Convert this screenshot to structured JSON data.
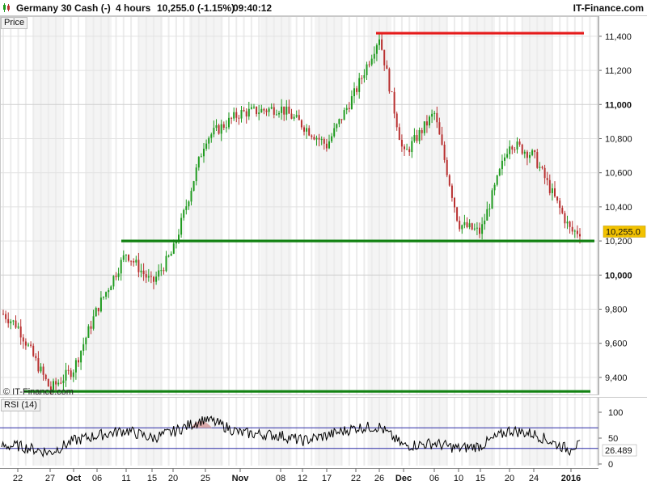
{
  "header": {
    "instrument": "Germany 30 Cash (-)",
    "timeframe": "4 hours",
    "quote": "10,255.0 (-1.15%)",
    "time": "09:40:12",
    "source": "IT-Finance.com"
  },
  "price_panel": {
    "label": "Price",
    "watermark": "© IT-Finance.com"
  },
  "rsi_panel": {
    "label": "RSI (14)"
  },
  "colors": {
    "bull": "#1f9a1f",
    "bear": "#b83030",
    "resistance": "#e51b1b",
    "support": "#128212",
    "rsi_line": "#000000",
    "rsi_band": "#2b2ba6",
    "last_price_bg": "#f2c200"
  },
  "chart_data": [
    {
      "type": "candlestick",
      "title": "Germany 30 Cash (-) 4 hours",
      "ylim": [
        9300,
        11480
      ],
      "y_ticks": [
        9400,
        9600,
        9800,
        10000,
        10200,
        10400,
        10600,
        10800,
        11000,
        11200,
        11400
      ],
      "y_tick_labels": [
        "9,400",
        "9,600",
        "9,800",
        "10,000",
        "10,200",
        "10,400",
        "10,600",
        "10,800",
        "11,000",
        "11,200",
        "11,400"
      ],
      "major_ticks": [
        "10,000",
        "11,000"
      ],
      "x_tick_labels": [
        "22",
        "27",
        "Oct",
        "06",
        "11",
        "15",
        "20",
        "25",
        "Nov",
        "08",
        "12",
        "17",
        "22",
        "26",
        "Dec",
        "06",
        "10",
        "15",
        "20",
        "24",
        "2016"
      ],
      "last_price": 10255.0,
      "last_price_label": "10,255.0",
      "series": [
        {
          "type": "close_path",
          "x": [
            "22",
            "27",
            "Oct",
            "06",
            "11",
            "15",
            "20",
            "25",
            "Nov",
            "08",
            "12",
            "17",
            "22",
            "26",
            "Dec",
            "06",
            "10",
            "15",
            "20",
            "24",
            "2016"
          ],
          "values": [
            9700,
            9330,
            9450,
            9800,
            10130,
            9950,
            10140,
            10800,
            10950,
            10980,
            10880,
            10760,
            11080,
            11400,
            10700,
            10950,
            10300,
            10250,
            10780,
            10700,
            10255
          ]
        }
      ],
      "horizontal_levels": [
        {
          "name": "resistance",
          "value": 11418,
          "from": "25",
          "to": "2016"
        },
        {
          "name": "support",
          "value": 10200,
          "from": "11",
          "to": "2016"
        },
        {
          "name": "support",
          "value": 9318,
          "from": "22",
          "to": "2016"
        }
      ]
    },
    {
      "type": "line",
      "title": "RSI (14)",
      "ylim": [
        0,
        100
      ],
      "y_ticks": [
        0,
        50,
        100
      ],
      "y_tick_labels": [
        "0",
        "50",
        "100"
      ],
      "bands": [
        70,
        30
      ],
      "last_value": 26.489,
      "last_value_label": "26.489",
      "series": [
        {
          "x": [
            "22",
            "27",
            "Oct",
            "06",
            "11",
            "15",
            "20",
            "25",
            "Nov",
            "08",
            "12",
            "17",
            "22",
            "26",
            "Dec",
            "06",
            "10",
            "15",
            "20",
            "24",
            "2016"
          ],
          "values": [
            35,
            22,
            45,
            55,
            65,
            50,
            62,
            88,
            60,
            55,
            45,
            55,
            70,
            72,
            35,
            40,
            30,
            35,
            65,
            58,
            26
          ]
        }
      ]
    }
  ]
}
